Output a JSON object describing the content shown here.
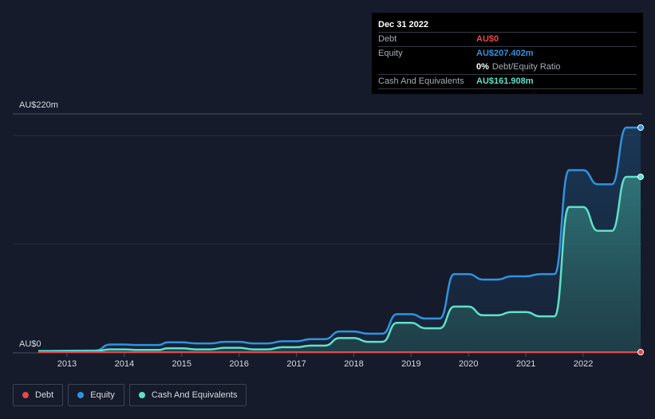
{
  "chart_data": {
    "type": "area",
    "y_label_top": "AU$220m",
    "y_label_bottom": "AU$0",
    "ylim": [
      0,
      220
    ],
    "xlim": [
      2012.5,
      2023.0
    ],
    "x_ticks": [
      2013,
      2014,
      2015,
      2016,
      2017,
      2018,
      2019,
      2020,
      2021,
      2022
    ],
    "x_tick_labels": [
      "2013",
      "2014",
      "2015",
      "2016",
      "2017",
      "2018",
      "2019",
      "2020",
      "2021",
      "2022"
    ],
    "series": [
      {
        "name": "Debt",
        "color": "#e8474e",
        "points": [
          [
            2012.5,
            0
          ],
          [
            2023.0,
            0
          ]
        ]
      },
      {
        "name": "Equity",
        "color": "#2f93e0",
        "points": [
          [
            2012.5,
            1
          ],
          [
            2013.5,
            1.5
          ],
          [
            2013.75,
            7
          ],
          [
            2014.0,
            7
          ],
          [
            2014.25,
            6.5
          ],
          [
            2014.6,
            6.5
          ],
          [
            2014.75,
            9
          ],
          [
            2015.0,
            9
          ],
          [
            2015.25,
            8
          ],
          [
            2015.5,
            8
          ],
          [
            2015.75,
            9.5
          ],
          [
            2016.0,
            9.5
          ],
          [
            2016.25,
            8
          ],
          [
            2016.5,
            8
          ],
          [
            2016.75,
            10
          ],
          [
            2017.0,
            10
          ],
          [
            2017.25,
            12
          ],
          [
            2017.5,
            12
          ],
          [
            2017.75,
            19
          ],
          [
            2018.0,
            19
          ],
          [
            2018.25,
            17
          ],
          [
            2018.5,
            17
          ],
          [
            2018.75,
            35
          ],
          [
            2019.0,
            35
          ],
          [
            2019.25,
            31
          ],
          [
            2019.5,
            31
          ],
          [
            2019.75,
            72
          ],
          [
            2020.0,
            72
          ],
          [
            2020.25,
            67
          ],
          [
            2020.5,
            67
          ],
          [
            2020.75,
            70
          ],
          [
            2021.0,
            70
          ],
          [
            2021.25,
            72
          ],
          [
            2021.5,
            72
          ],
          [
            2021.75,
            168
          ],
          [
            2022.0,
            168
          ],
          [
            2022.25,
            155
          ],
          [
            2022.5,
            155
          ],
          [
            2022.75,
            207.402
          ],
          [
            2023.0,
            207.402
          ]
        ]
      },
      {
        "name": "Cash And Equivalents",
        "color": "#5fe0c8",
        "points": [
          [
            2012.5,
            0.8
          ],
          [
            2013.5,
            1
          ],
          [
            2013.75,
            2.5
          ],
          [
            2014.0,
            2.5
          ],
          [
            2014.25,
            2
          ],
          [
            2014.6,
            2
          ],
          [
            2014.75,
            3.5
          ],
          [
            2015.0,
            3.5
          ],
          [
            2015.25,
            2.5
          ],
          [
            2015.5,
            2.5
          ],
          [
            2015.75,
            4
          ],
          [
            2016.0,
            4
          ],
          [
            2016.25,
            2.5
          ],
          [
            2016.5,
            2.5
          ],
          [
            2016.75,
            4.5
          ],
          [
            2017.0,
            4.5
          ],
          [
            2017.25,
            6
          ],
          [
            2017.5,
            6
          ],
          [
            2017.75,
            13
          ],
          [
            2018.0,
            13
          ],
          [
            2018.25,
            9.5
          ],
          [
            2018.5,
            9.5
          ],
          [
            2018.75,
            27
          ],
          [
            2019.0,
            27
          ],
          [
            2019.25,
            22
          ],
          [
            2019.5,
            22
          ],
          [
            2019.75,
            42
          ],
          [
            2020.0,
            42
          ],
          [
            2020.25,
            34
          ],
          [
            2020.5,
            34
          ],
          [
            2020.75,
            37
          ],
          [
            2021.0,
            37
          ],
          [
            2021.25,
            33
          ],
          [
            2021.5,
            33
          ],
          [
            2021.75,
            134
          ],
          [
            2022.0,
            134
          ],
          [
            2022.25,
            112
          ],
          [
            2022.5,
            112
          ],
          [
            2022.75,
            161.908
          ],
          [
            2023.0,
            161.908
          ]
        ]
      }
    ]
  },
  "tooltip": {
    "date": "Dec 31 2022",
    "debt_label": "Debt",
    "debt_value": "AU$0",
    "equity_label": "Equity",
    "equity_value": "AU$207.402m",
    "ratio_value": "0%",
    "ratio_label": "Debt/Equity Ratio",
    "cash_label": "Cash And Equivalents",
    "cash_value": "AU$161.908m"
  },
  "legend": [
    {
      "label": "Debt",
      "color": "#e8474e"
    },
    {
      "label": "Equity",
      "color": "#2f93e0"
    },
    {
      "label": "Cash And Equivalents",
      "color": "#5fe0c8"
    }
  ],
  "colors": {
    "debt": "#e8474e",
    "equity": "#2f93e0",
    "cash": "#5fe0c8",
    "background": "#151b2a"
  }
}
